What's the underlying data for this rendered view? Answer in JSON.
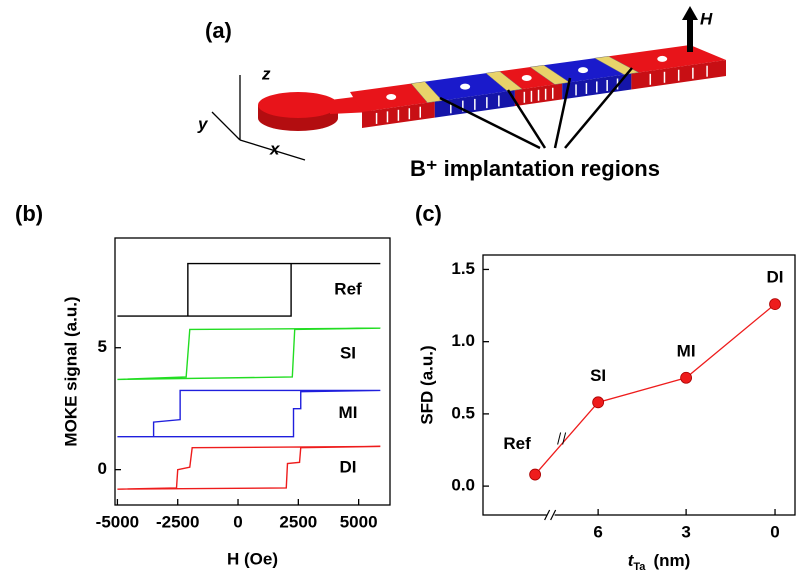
{
  "panel_a": {
    "label": "(a)",
    "axis_x": "x",
    "axis_y": "y",
    "axis_z": "z",
    "field": "H",
    "annotation": "B⁺ implantation regions"
  },
  "chart_data": [
    {
      "type": "line",
      "panel_label": "(b)",
      "ylabel": "MOKE signal (a.u.)",
      "xlabel": "H (Oe)",
      "xlim": [
        -5100,
        6300
      ],
      "xticks": [
        -5000,
        -2500,
        0,
        2500,
        5000
      ],
      "ylim": [
        -1.45,
        9.5
      ],
      "yticks": [
        0,
        5
      ],
      "series": [
        {
          "name": "Ref",
          "color": "#000000",
          "x": [
            -5000,
            2200,
            2200,
            5900,
            5900,
            -2080,
            -2080,
            -5000
          ],
          "values": [
            6.3,
            6.3,
            8.45,
            8.45,
            8.45,
            8.45,
            6.3,
            6.3
          ]
        },
        {
          "name": "SI",
          "color": "#22dd22",
          "x": [
            -5000,
            2250,
            2350,
            5900,
            -2000,
            -2150,
            -5000
          ],
          "values": [
            3.7,
            3.8,
            5.75,
            5.8,
            5.75,
            3.8,
            3.7
          ]
        },
        {
          "name": "MI",
          "color": "#1f1fdd",
          "x": [
            -5000,
            2300,
            2300,
            2600,
            2600,
            5900,
            -2400,
            -2400,
            -3500,
            -3500,
            -5000
          ],
          "values": [
            1.35,
            1.35,
            2.5,
            2.5,
            3.2,
            3.25,
            3.25,
            2.05,
            1.95,
            1.35,
            1.35
          ]
        },
        {
          "name": "DI",
          "color": "#ee1c1c",
          "x": [
            -5000,
            2000,
            2050,
            2550,
            2600,
            5900,
            -1900,
            -2000,
            -2500,
            -2550,
            -5000
          ],
          "values": [
            -0.8,
            -0.75,
            0.25,
            0.3,
            0.9,
            0.95,
            0.9,
            0.1,
            0.0,
            -0.75,
            -0.8
          ]
        }
      ]
    },
    {
      "type": "line",
      "panel_label": "(c)",
      "ylabel": "SFD (a.u.)",
      "xlabel_var": "t",
      "xlabel_sub": "Ta",
      "xlabel_unit": "(nm)",
      "categories": [
        null,
        "6",
        "3",
        "0"
      ],
      "values": [
        0.08,
        0.58,
        0.75,
        1.26
      ],
      "point_labels": [
        "Ref",
        "SI",
        "MI",
        "DI"
      ],
      "color": "#ee1c1c",
      "ylim": [
        -0.2,
        1.6
      ],
      "yticks": [
        {
          "value": 0,
          "label": "0.0"
        },
        0.5,
        {
          "value": 1,
          "label": "1.0"
        },
        1.5
      ]
    }
  ]
}
